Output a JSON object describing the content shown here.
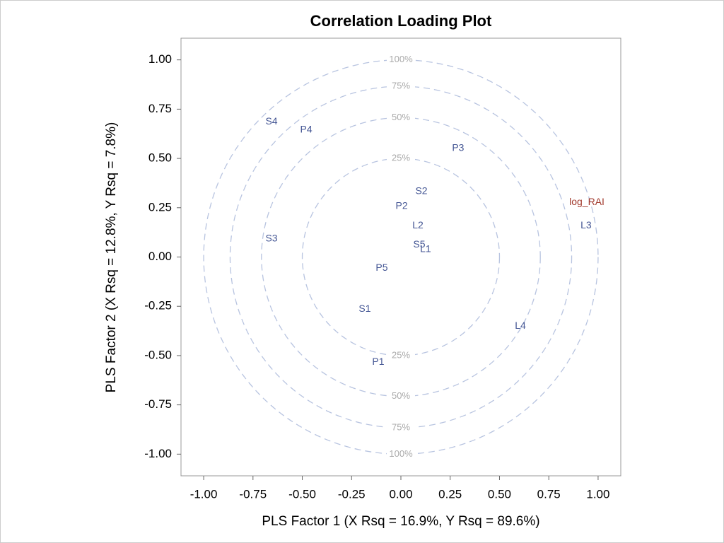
{
  "chart_data": {
    "type": "scatter",
    "title": "Correlation Loading Plot",
    "x_label": "PLS Factor 1 (X Rsq = 16.9%, Y Rsq = 89.6%)",
    "y_label": "PLS Factor 2 (X Rsq = 12.8%, Y Rsq = 7.8%)",
    "xlim": [
      -1.115,
      1.115
    ],
    "ylim": [
      -1.11,
      1.11
    ],
    "xticks": [
      {
        "value": -1,
        "label": "-1.00"
      },
      {
        "value": -0.75,
        "label": "-0.75"
      },
      {
        "value": -0.5,
        "label": "-0.50"
      },
      {
        "value": -0.25,
        "label": "-0.25"
      },
      {
        "value": 0,
        "label": "0.00"
      },
      {
        "value": 0.25,
        "label": "0.25"
      },
      {
        "value": 0.5,
        "label": "0.50"
      },
      {
        "value": 0.75,
        "label": "0.75"
      },
      {
        "value": 1,
        "label": "1.00"
      }
    ],
    "yticks": [
      {
        "value": -1,
        "label": "-1.00"
      },
      {
        "value": -0.75,
        "label": "-0.75"
      },
      {
        "value": -0.5,
        "label": "-0.50"
      },
      {
        "value": -0.25,
        "label": "-0.25"
      },
      {
        "value": 0,
        "label": "0.00"
      },
      {
        "value": 0.25,
        "label": "0.25"
      },
      {
        "value": 0.5,
        "label": "0.50"
      },
      {
        "value": 0.75,
        "label": "0.75"
      },
      {
        "value": 1,
        "label": "1.00"
      }
    ],
    "circles": [
      {
        "radius": 1,
        "label": "100%"
      },
      {
        "radius": 0.866,
        "label": "75%"
      },
      {
        "radius": 0.707,
        "label": "50%"
      },
      {
        "radius": 0.5,
        "label": "25%"
      }
    ],
    "circle_color": "#b8c4e0",
    "series": [
      {
        "color": "#445694",
        "labels": [
          "S4",
          "P4",
          "P3",
          "L3",
          "S2",
          "P2",
          "L2",
          "S5",
          "L1",
          "S3",
          "P5",
          "S1",
          "L4",
          "P1"
        ],
        "x": [
          -0.656,
          -0.48,
          0.29,
          0.939,
          0.104,
          0.004,
          0.086,
          0.093,
          0.125,
          -0.656,
          -0.097,
          -0.183,
          0.606,
          -0.115
        ],
        "values": [
          0.685,
          0.645,
          0.552,
          0.158,
          0.333,
          0.258,
          0.158,
          0.061,
          0.039,
          0.093,
          -0.057,
          -0.265,
          -0.351,
          -0.534
        ]
      },
      {
        "color": "#a23a2e",
        "labels": [
          "log_RAI"
        ],
        "x": [
          0.943
        ],
        "values": [
          0.276
        ]
      }
    ]
  }
}
